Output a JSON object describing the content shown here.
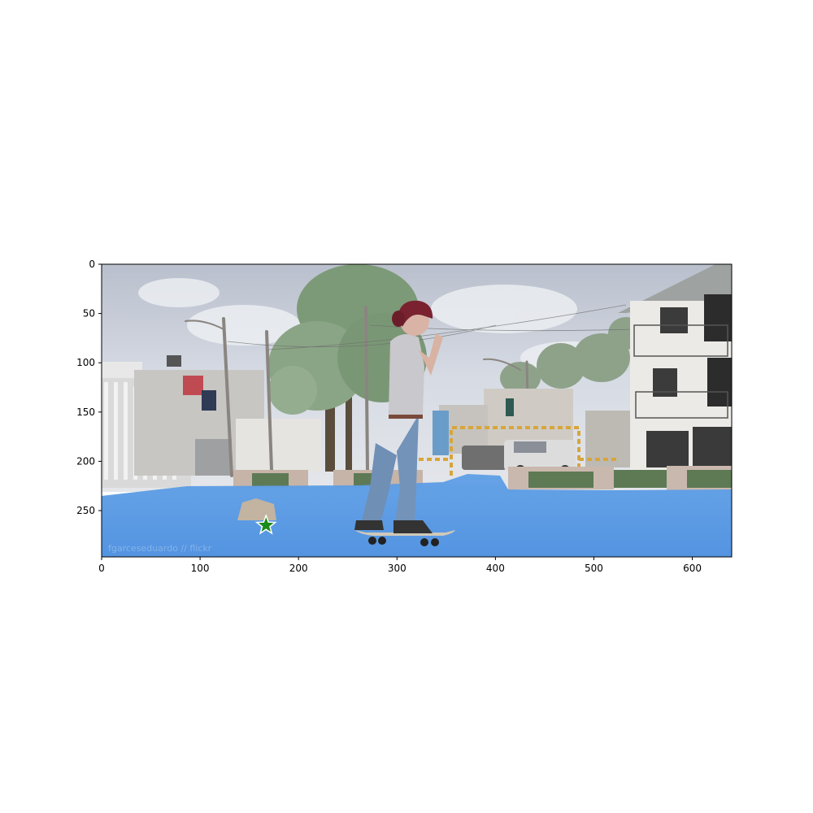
{
  "figure": {
    "image_description_hidden": "",
    "x_axis": {
      "range": [
        0,
        640
      ],
      "ticks": [
        0,
        100,
        200,
        300,
        400,
        500,
        600
      ]
    },
    "y_axis": {
      "range": [
        0,
        297
      ],
      "inverted": true,
      "ticks": [
        0,
        50,
        100,
        150,
        200,
        250
      ]
    },
    "overlay_color": "#4f93e6",
    "marker": {
      "shape": "star",
      "color": "#1a8a1a",
      "x": 167,
      "y": 265
    },
    "watermark_text": "fgarceseduardo // flickr"
  }
}
